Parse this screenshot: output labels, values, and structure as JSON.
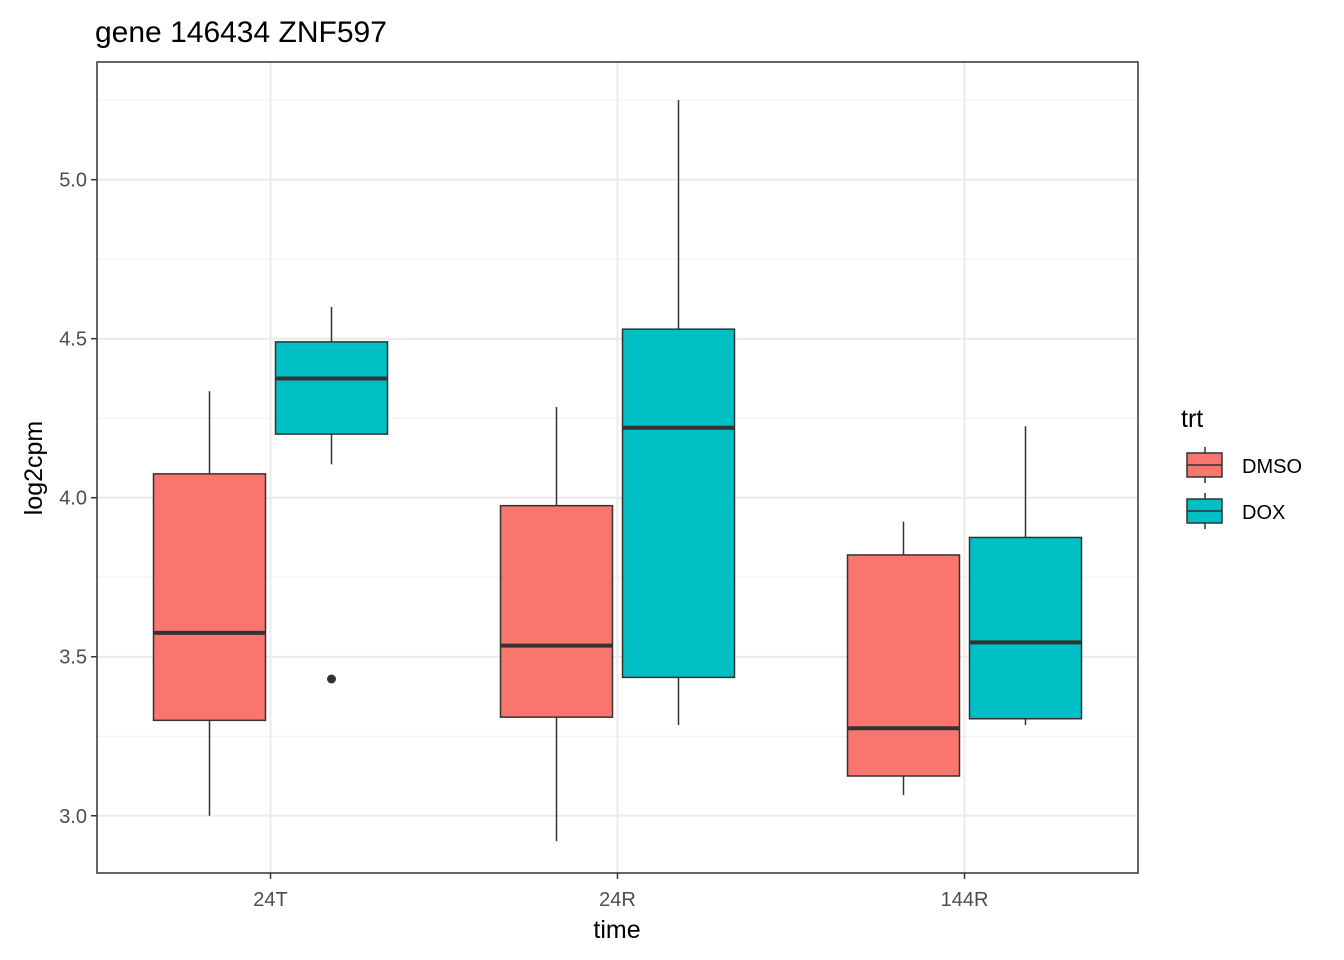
{
  "chart_data": {
    "type": "boxplot",
    "title": "gene 146434 ZNF597",
    "xlabel": "time",
    "ylabel": "log2cpm",
    "categories": [
      "24T",
      "24R",
      "144R"
    ],
    "ylim": [
      2.82,
      5.37
    ],
    "yticks": [
      3.0,
      3.5,
      4.0,
      4.5,
      5.0
    ],
    "ytick_labels": [
      "3.0",
      "3.5",
      "4.0",
      "4.5",
      "5.0"
    ],
    "grid": true,
    "legend": {
      "title": "trt",
      "position": "right",
      "entries": [
        "DMSO",
        "DOX"
      ]
    },
    "series": [
      {
        "name": "DMSO",
        "color": "#F8766D",
        "boxes": [
          {
            "category": "24T",
            "min": 3.0,
            "q1": 3.3,
            "median": 3.575,
            "q3": 4.075,
            "max": 4.335,
            "outliers": []
          },
          {
            "category": "24R",
            "min": 2.92,
            "q1": 3.31,
            "median": 3.535,
            "q3": 3.975,
            "max": 4.285,
            "outliers": []
          },
          {
            "category": "144R",
            "min": 3.065,
            "q1": 3.125,
            "median": 3.275,
            "q3": 3.82,
            "max": 3.925,
            "outliers": []
          }
        ]
      },
      {
        "name": "DOX",
        "color": "#00BFC4",
        "boxes": [
          {
            "category": "24T",
            "min": 4.105,
            "q1": 4.2,
            "median": 4.375,
            "q3": 4.49,
            "max": 4.6,
            "outliers": [
              3.43
            ]
          },
          {
            "category": "24R",
            "min": 3.285,
            "q1": 3.435,
            "median": 4.22,
            "q3": 4.53,
            "max": 5.25,
            "outliers": []
          },
          {
            "category": "144R",
            "min": 3.285,
            "q1": 3.305,
            "median": 3.545,
            "q3": 3.875,
            "max": 4.225,
            "outliers": []
          }
        ]
      }
    ]
  }
}
